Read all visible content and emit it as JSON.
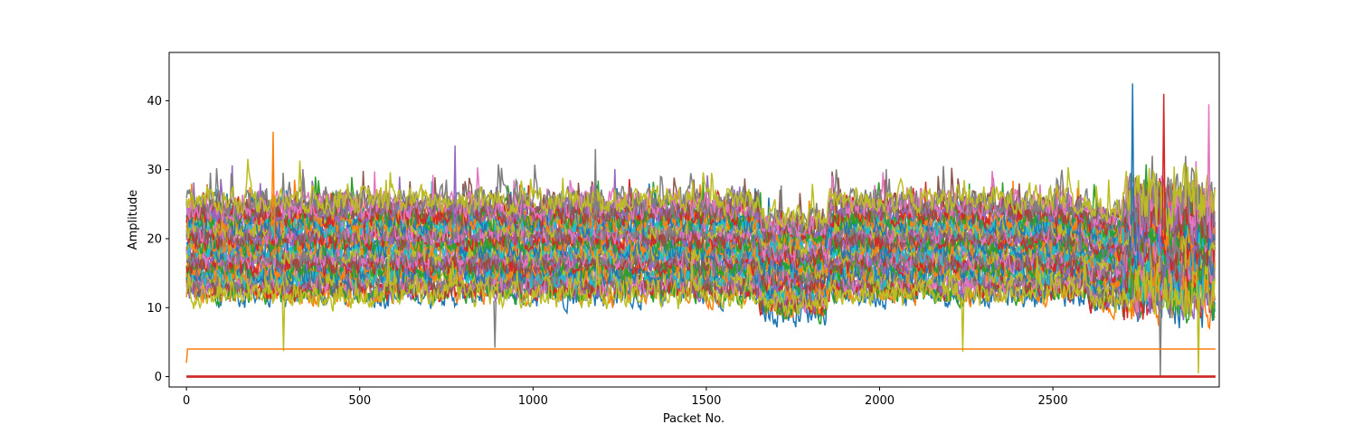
{
  "chart_data": {
    "type": "line",
    "title": "",
    "xlabel": "Packet No.",
    "ylabel": "Amplitude",
    "xlim": [
      -50,
      2980
    ],
    "ylim": [
      -1.5,
      47
    ],
    "xticks": [
      0,
      500,
      1000,
      1500,
      2000,
      2500
    ],
    "yticks": [
      0,
      10,
      20,
      30,
      40
    ],
    "grid": false,
    "legend": "none",
    "series_count_note_hidden": true,
    "palette": [
      "#1f77b4",
      "#ff7f0e",
      "#2ca02c",
      "#d62728",
      "#9467bd",
      "#8c564b",
      "#e377c2",
      "#7f7f7f",
      "#bcbd22",
      "#17becf"
    ],
    "n_points": 2970,
    "band_series": {
      "count": 40,
      "center_min": 12,
      "center_max": 26,
      "noise_amplitude": 6,
      "last_color": "#bcbd22"
    },
    "constant_series": [
      {
        "color": "#ff7f0e",
        "start_value": 2,
        "value": 4
      },
      {
        "color": "#8c564b",
        "value": 0
      },
      {
        "color": "#d62728",
        "value": 0
      }
    ],
    "spikes": [
      {
        "x": 250,
        "y": 35.5
      },
      {
        "x": 775,
        "y": 33.5
      },
      {
        "x": 1180,
        "y": 33
      },
      {
        "x": 2730,
        "y": 42.5
      },
      {
        "x": 2820,
        "y": 41
      },
      {
        "x": 2950,
        "y": 39.5
      }
    ],
    "dips": [
      {
        "x": 280,
        "y": 3.7
      },
      {
        "x": 890,
        "y": 4.2
      },
      {
        "x": 2240,
        "y": 3.6
      },
      {
        "x": 2810,
        "y": 0
      },
      {
        "x": 2920,
        "y": 0.5
      }
    ]
  }
}
